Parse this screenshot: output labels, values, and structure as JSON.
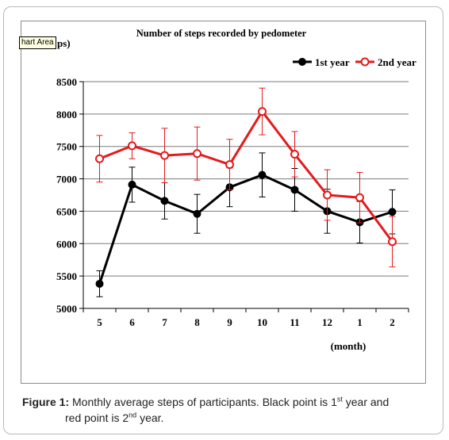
{
  "chart_data": {
    "type": "line",
    "title": "Number of steps recorded by pedometer",
    "ylabel_fragment": "ps)",
    "xlabel": "(month)",
    "categories": [
      "5",
      "6",
      "7",
      "8",
      "9",
      "10",
      "11",
      "12",
      "1",
      "2"
    ],
    "ylim": [
      5000,
      8500
    ],
    "yticks": [
      5000,
      5500,
      6000,
      6500,
      7000,
      7500,
      8000,
      8500
    ],
    "grid": true,
    "legend_position": "top-right",
    "series": [
      {
        "name": "1st year",
        "color": "#000000",
        "marker": "filled-circle",
        "values": [
          5380,
          6910,
          6660,
          6460,
          6870,
          7060,
          6830,
          6500,
          6330,
          6490
        ],
        "errors": [
          200,
          270,
          280,
          300,
          300,
          340,
          330,
          340,
          320,
          340
        ]
      },
      {
        "name": "2nd year",
        "color": "#e41a1c",
        "marker": "open-circle",
        "values": [
          7310,
          7510,
          7360,
          7390,
          7220,
          8040,
          7380,
          6750,
          6710,
          6030
        ],
        "errors": [
          360,
          200,
          420,
          410,
          390,
          360,
          350,
          390,
          390,
          390
        ]
      }
    ]
  },
  "tooltip": "hart Area",
  "caption": {
    "figure_label": "Figure 1:",
    "text_1": " Monthly average steps of participants. Black point is 1",
    "sup_1": "st",
    "text_2": " year and",
    "text_3": "red point is 2",
    "sup_2": "nd",
    "text_4": " year."
  }
}
